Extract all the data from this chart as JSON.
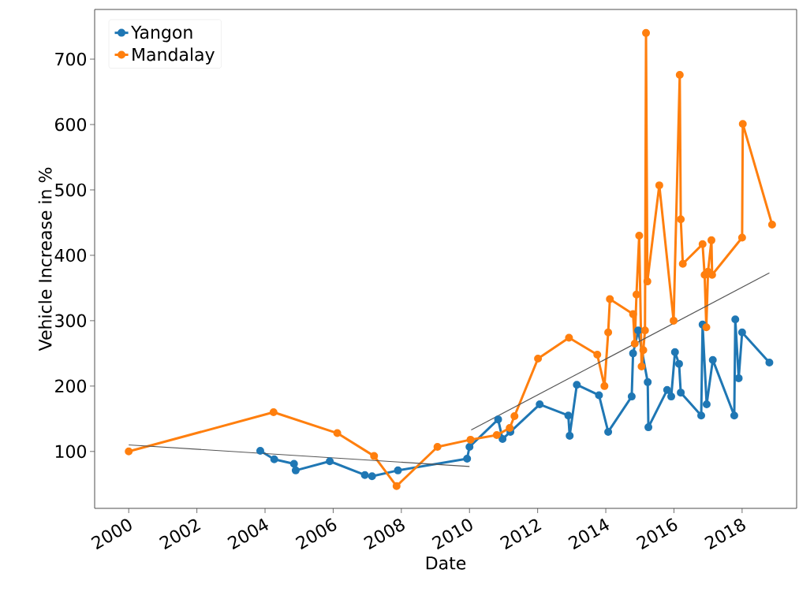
{
  "chart_data": {
    "type": "line",
    "xlabel": "Date",
    "ylabel": "Vehicle Increase in %",
    "xlim": [
      1999.0,
      2019.6
    ],
    "ylim": [
      13,
      776
    ],
    "xticks": [
      2000,
      2002,
      2004,
      2006,
      2008,
      2010,
      2012,
      2014,
      2016,
      2018
    ],
    "yticks": [
      100,
      200,
      300,
      400,
      500,
      600,
      700
    ],
    "legend": "top left",
    "marker": "circle",
    "line_style": "solid",
    "grid": false,
    "series": [
      {
        "name": "Yangon",
        "color": "#1f77b4",
        "x": [
          2003.86,
          2004.27,
          2004.85,
          2004.9,
          2005.9,
          2006.93,
          2007.14,
          2007.9,
          2009.93,
          2010.0,
          2010.84,
          2010.97,
          2011.2,
          2012.06,
          2012.9,
          2012.94,
          2013.15,
          2013.8,
          2014.07,
          2014.76,
          2014.8,
          2014.95,
          2015.23,
          2015.25,
          2015.8,
          2015.92,
          2016.03,
          2016.15,
          2016.2,
          2016.8,
          2016.84,
          2016.96,
          2017.14,
          2017.77,
          2017.8,
          2017.9,
          2018.0,
          2018.8
        ],
        "values": [
          101,
          88,
          81,
          71,
          85,
          64,
          62,
          71,
          89,
          107,
          149,
          119,
          130,
          172,
          155,
          124,
          202,
          186,
          130,
          184,
          250,
          285,
          206,
          137,
          194,
          184,
          252,
          234,
          190,
          155,
          294,
          172,
          240,
          155,
          302,
          212,
          282,
          236
        ]
      },
      {
        "name": "Mandalay",
        "color": "#ff7f0e",
        "x": [
          2000.0,
          2004.25,
          2006.12,
          2007.2,
          2007.86,
          2009.06,
          2010.03,
          2010.8,
          2011.18,
          2011.32,
          2012.01,
          2012.92,
          2013.75,
          2013.96,
          2014.07,
          2014.12,
          2014.8,
          2014.85,
          2014.9,
          2014.98,
          2015.05,
          2015.1,
          2015.15,
          2015.18,
          2015.22,
          2015.57,
          2015.99,
          2016.17,
          2016.2,
          2016.26,
          2016.84,
          2016.9,
          2016.95,
          2017.0,
          2017.1,
          2017.12,
          2018.0,
          2018.02,
          2018.88
        ],
        "values": [
          100,
          160,
          128,
          93,
          47,
          107,
          118,
          125,
          136,
          154,
          242,
          274,
          248,
          200,
          282,
          333,
          310,
          265,
          340,
          430,
          230,
          255,
          285,
          740,
          360,
          507,
          300,
          676,
          455,
          387,
          417,
          370,
          290,
          375,
          423,
          370,
          427,
          601,
          447
        ]
      },
      {
        "type": "line",
        "color": "#555555",
        "marker": "none",
        "x": [
          2000.0,
          2010.0
        ],
        "values": [
          110,
          77
        ]
      },
      {
        "type": "line",
        "color": "#555555",
        "marker": "none",
        "x": [
          2010.05,
          2018.8
        ],
        "values": [
          133,
          373
        ]
      }
    ]
  }
}
